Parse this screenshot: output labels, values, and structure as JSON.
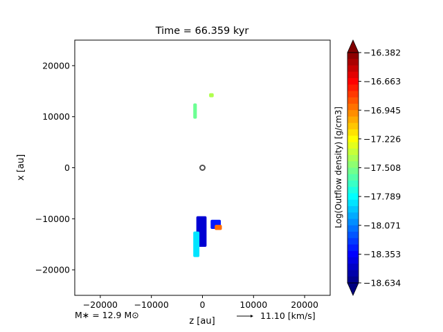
{
  "chart_data": {
    "type": "heatmap",
    "title": "Time = 66.359 kyr",
    "xlabel": "z [au]",
    "ylabel": "x [au]",
    "xlim": [
      -25000,
      25000
    ],
    "ylim": [
      -25000,
      25000
    ],
    "xticks": [
      -20000,
      -10000,
      0,
      10000,
      20000
    ],
    "xtick_labels": [
      "−20000",
      "−10000",
      "0",
      "10000",
      "20000"
    ],
    "yticks": [
      20000,
      10000,
      0,
      -10000,
      -20000
    ],
    "ytick_labels": [
      "20000",
      "10000",
      "0",
      "−10000",
      "−20000"
    ],
    "colorbar": {
      "label": "Log(Outflow density) [g/cm3]",
      "min": -18.634,
      "max": -16.382,
      "ticks": [
        -16.382,
        -16.663,
        -16.945,
        -17.226,
        -17.508,
        -17.789,
        -18.071,
        -18.353,
        -18.634
      ],
      "tick_labels": [
        "−16.382",
        "−16.663",
        "−16.945",
        "−17.226",
        "−17.508",
        "−17.789",
        "−18.071",
        "−18.353",
        "−18.634"
      ],
      "colormap": "jet"
    },
    "star_marker": {
      "z": 0,
      "x": 0
    },
    "outflow_patches": [
      {
        "name": "upper-left-blob",
        "z": [
          -1800,
          -1100
        ],
        "x": [
          9600,
          12600
        ],
        "value": -17.55
      },
      {
        "name": "upper-right-blob",
        "z": [
          1300,
          2200
        ],
        "x": [
          13800,
          14600
        ],
        "value": -17.4
      },
      {
        "name": "lower-lobe-core",
        "z": [
          -1200,
          800
        ],
        "x": [
          -15500,
          -9500
        ],
        "value": -18.45
      },
      {
        "name": "lower-lobe-edge",
        "z": [
          -1800,
          -600
        ],
        "x": [
          -17500,
          -12500
        ],
        "value": -17.85
      },
      {
        "name": "lower-right-arm",
        "z": [
          1600,
          3600
        ],
        "x": [
          -12000,
          -10200
        ],
        "value": -18.3
      },
      {
        "name": "lower-right-tip",
        "z": [
          2400,
          3800
        ],
        "x": [
          -12200,
          -11200
        ],
        "value": -16.9
      }
    ],
    "annotations": {
      "mass": "M∗ = 12.9 M⊙",
      "velocity_scale": "11.10 [km/s]"
    }
  }
}
